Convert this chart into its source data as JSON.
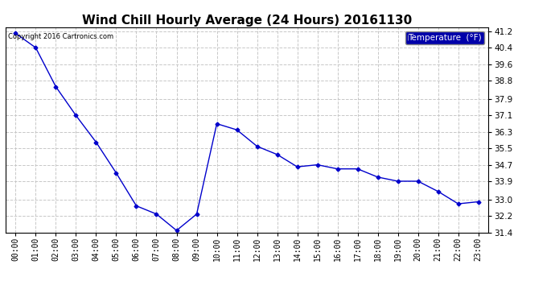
{
  "title": "Wind Chill Hourly Average (24 Hours) 20161130",
  "copyright": "Copyright 2016 Cartronics.com",
  "legend_label": "Temperature  (°F)",
  "hours": [
    "00:00",
    "01:00",
    "02:00",
    "03:00",
    "04:00",
    "05:00",
    "06:00",
    "07:00",
    "08:00",
    "09:00",
    "10:00",
    "11:00",
    "12:00",
    "13:00",
    "14:00",
    "15:00",
    "16:00",
    "17:00",
    "18:00",
    "19:00",
    "20:00",
    "21:00",
    "22:00",
    "23:00"
  ],
  "values": [
    41.1,
    40.4,
    38.5,
    37.1,
    35.8,
    34.3,
    32.7,
    32.3,
    31.5,
    32.3,
    36.7,
    36.4,
    35.6,
    35.2,
    34.6,
    34.7,
    34.5,
    34.5,
    34.1,
    33.9,
    33.9,
    33.4,
    32.8,
    32.9
  ],
  "line_color": "#0000cc",
  "marker": "D",
  "marker_size": 2.5,
  "ylim": [
    31.4,
    41.4
  ],
  "yticks": [
    31.4,
    32.2,
    33.0,
    33.9,
    34.7,
    35.5,
    36.3,
    37.1,
    37.9,
    38.8,
    39.6,
    40.4,
    41.2
  ],
  "grid_color": "#c8c8c8",
  "bg_color": "#ffffff",
  "title_fontsize": 11,
  "legend_bg": "#0000aa",
  "legend_text_color": "#ffffff"
}
